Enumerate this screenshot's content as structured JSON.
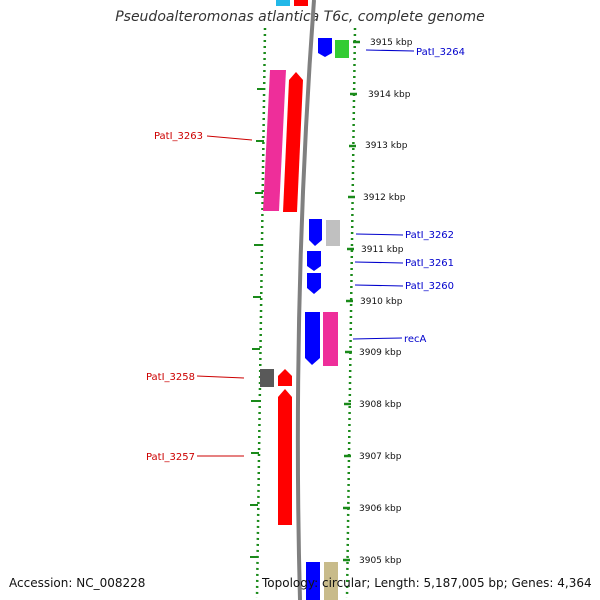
{
  "title": "Pseudoalteromonas atlantica T6c, complete genome",
  "accession": "Accession: NC_008228",
  "topology": "Topology: circular; Length: 5,187,005 bp; Genes: 4,364",
  "colors": {
    "outer_ruler": "#1a8a1a",
    "backbone": "#808080",
    "forward_label": "#0000cc",
    "reverse_label": "#cc0000"
  },
  "ruler_ticks": [
    {
      "label": "3915 kbp"
    },
    {
      "label": "3914 kbp"
    },
    {
      "label": "3913 kbp"
    },
    {
      "label": "3912 kbp"
    },
    {
      "label": "3911 kbp"
    },
    {
      "label": "3910 kbp"
    },
    {
      "label": "3909 kbp"
    },
    {
      "label": "3908 kbp"
    },
    {
      "label": "3907 kbp"
    },
    {
      "label": "3906 kbp"
    },
    {
      "label": "3905 kbp"
    }
  ],
  "gene_labels": [
    {
      "name": "PatI_3264",
      "strand": "forward"
    },
    {
      "name": "PatI_3263",
      "strand": "reverse"
    },
    {
      "name": "PatI_3262",
      "strand": "forward"
    },
    {
      "name": "PatI_3261",
      "strand": "forward"
    },
    {
      "name": "PatI_3260",
      "strand": "forward"
    },
    {
      "name": "recA",
      "strand": "forward"
    },
    {
      "name": "PatI_3258",
      "strand": "reverse"
    },
    {
      "name": "PatI_3257",
      "strand": "reverse"
    }
  ]
}
